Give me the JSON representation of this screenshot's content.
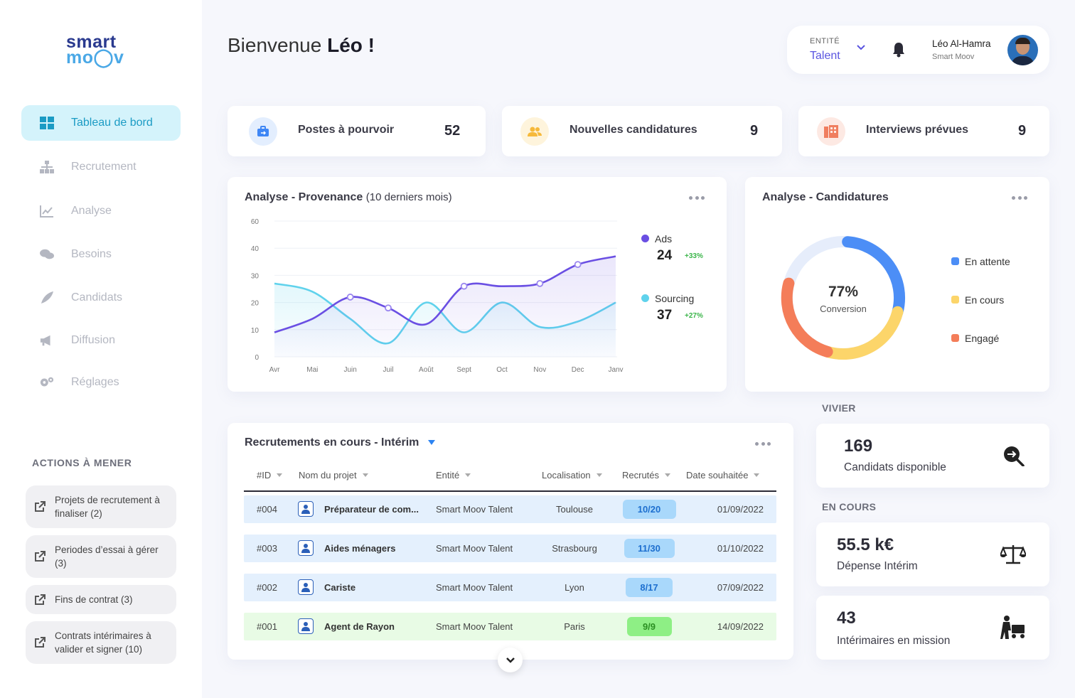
{
  "logo": {
    "line1": "smart",
    "line2": "mo◯v"
  },
  "sidebar": {
    "items": [
      {
        "label": "Tableau de bord",
        "icon": "grid-icon"
      },
      {
        "label": "Recrutement",
        "icon": "org-chart-icon"
      },
      {
        "label": "Analyse",
        "icon": "line-chart-icon"
      },
      {
        "label": "Besoins",
        "icon": "chat-bubbles-icon"
      },
      {
        "label": "Candidats",
        "icon": "feather-icon"
      },
      {
        "label": "Diffusion",
        "icon": "megaphone-icon"
      },
      {
        "label": "Réglages",
        "icon": "gears-icon"
      }
    ]
  },
  "actions": {
    "title": "ACTIONS À MENER",
    "items": [
      {
        "label": "Projets de recrutement à finaliser (2)"
      },
      {
        "label": "Periodes d’essai à gérer (3)"
      },
      {
        "label": "Fins de contrat (3)"
      },
      {
        "label": "Contrats intérimaires à valider et signer (10)"
      }
    ]
  },
  "header": {
    "greeting": "Bienvenue",
    "name": "Léo !",
    "entity_label": "ENTITÉ",
    "entity_value": "Talent",
    "user_name": "Léo Al-Hamra",
    "user_company": "Smart Moov"
  },
  "stats": [
    {
      "label": "Postes à pourvoir",
      "value": "52",
      "color": "#3e86f5",
      "bg": "#e3eefe",
      "icon": "briefcase-icon"
    },
    {
      "label": "Nouvelles candidatures",
      "value": "9",
      "color": "#f6b93a",
      "bg": "#fef4dc",
      "icon": "users-icon"
    },
    {
      "label": "Interviews prévues",
      "value": "9",
      "color": "#f07e5f",
      "bg": "#fde9e3",
      "icon": "building-icon"
    }
  ],
  "provenance": {
    "title": "Analyse - Provenance",
    "subtitle": "(10 derniers mois)",
    "legend": [
      {
        "name": "Ads",
        "value": "24",
        "delta": "+33%",
        "color": "#6a4fe3"
      },
      {
        "name": "Sourcing",
        "value": "37",
        "delta": "+27%",
        "color": "#5fd2ec"
      }
    ]
  },
  "candidatures": {
    "title": "Analyse - Candidatures",
    "pct": "77%",
    "caption": "Conversion",
    "legend": [
      {
        "label": "En attente",
        "color": "#4c8ef6"
      },
      {
        "label": "En cours",
        "color": "#fcd56a"
      },
      {
        "label": "Engagé",
        "color": "#f47d59"
      }
    ]
  },
  "chart_data": {
    "type": "line",
    "categories": [
      "Avr",
      "Mai",
      "Juin",
      "Juil",
      "Août",
      "Sept",
      "Oct",
      "Nov",
      "Dec",
      "Janv"
    ],
    "ylim": [
      0,
      60
    ],
    "yticks": [
      "0",
      "10",
      "20",
      "30",
      "40",
      "60"
    ],
    "series": [
      {
        "name": "Ads",
        "values": [
          9,
          14,
          22,
          18,
          12,
          26,
          26,
          27,
          34,
          37
        ],
        "color": "#6a4fe3"
      },
      {
        "name": "Sourcing",
        "values": [
          27,
          24,
          14,
          5,
          20,
          9,
          20,
          11,
          13,
          20
        ],
        "color": "#5fd2ec"
      }
    ]
  },
  "table": {
    "title": "Recrutements en cours - Intérim",
    "headers": [
      "#ID",
      "Nom du projet",
      "Entité",
      "Localisation",
      "Recrutés",
      "Date souhaitée"
    ],
    "rows": [
      {
        "id": "#004",
        "name": "Préparateur de com...",
        "entity": "Smart Moov Talent",
        "loc": "Toulouse",
        "rec": "10/20",
        "date": "01/09/2022"
      },
      {
        "id": "#003",
        "name": "Aides ménagers",
        "entity": "Smart Moov Talent",
        "loc": "Strasbourg",
        "rec": "11/30",
        "date": "01/10/2022"
      },
      {
        "id": "#002",
        "name": "Cariste",
        "entity": "Smart Moov Talent",
        "loc": "Lyon",
        "rec": "8/17",
        "date": "07/09/2022"
      },
      {
        "id": "#001",
        "name": "Agent de Rayon",
        "entity": "Smart Moov Talent",
        "loc": "Paris",
        "rec": "9/9",
        "date": "14/09/2022"
      }
    ]
  },
  "vivier": {
    "title": "VIVIER",
    "value": "169",
    "label": "Candidats disponible"
  },
  "encours": {
    "title": "EN COURS",
    "items": [
      {
        "value": "55.5 k€",
        "label": "Dépense Intérim"
      },
      {
        "value": "43",
        "label": "Intérimaires en mission"
      }
    ]
  }
}
